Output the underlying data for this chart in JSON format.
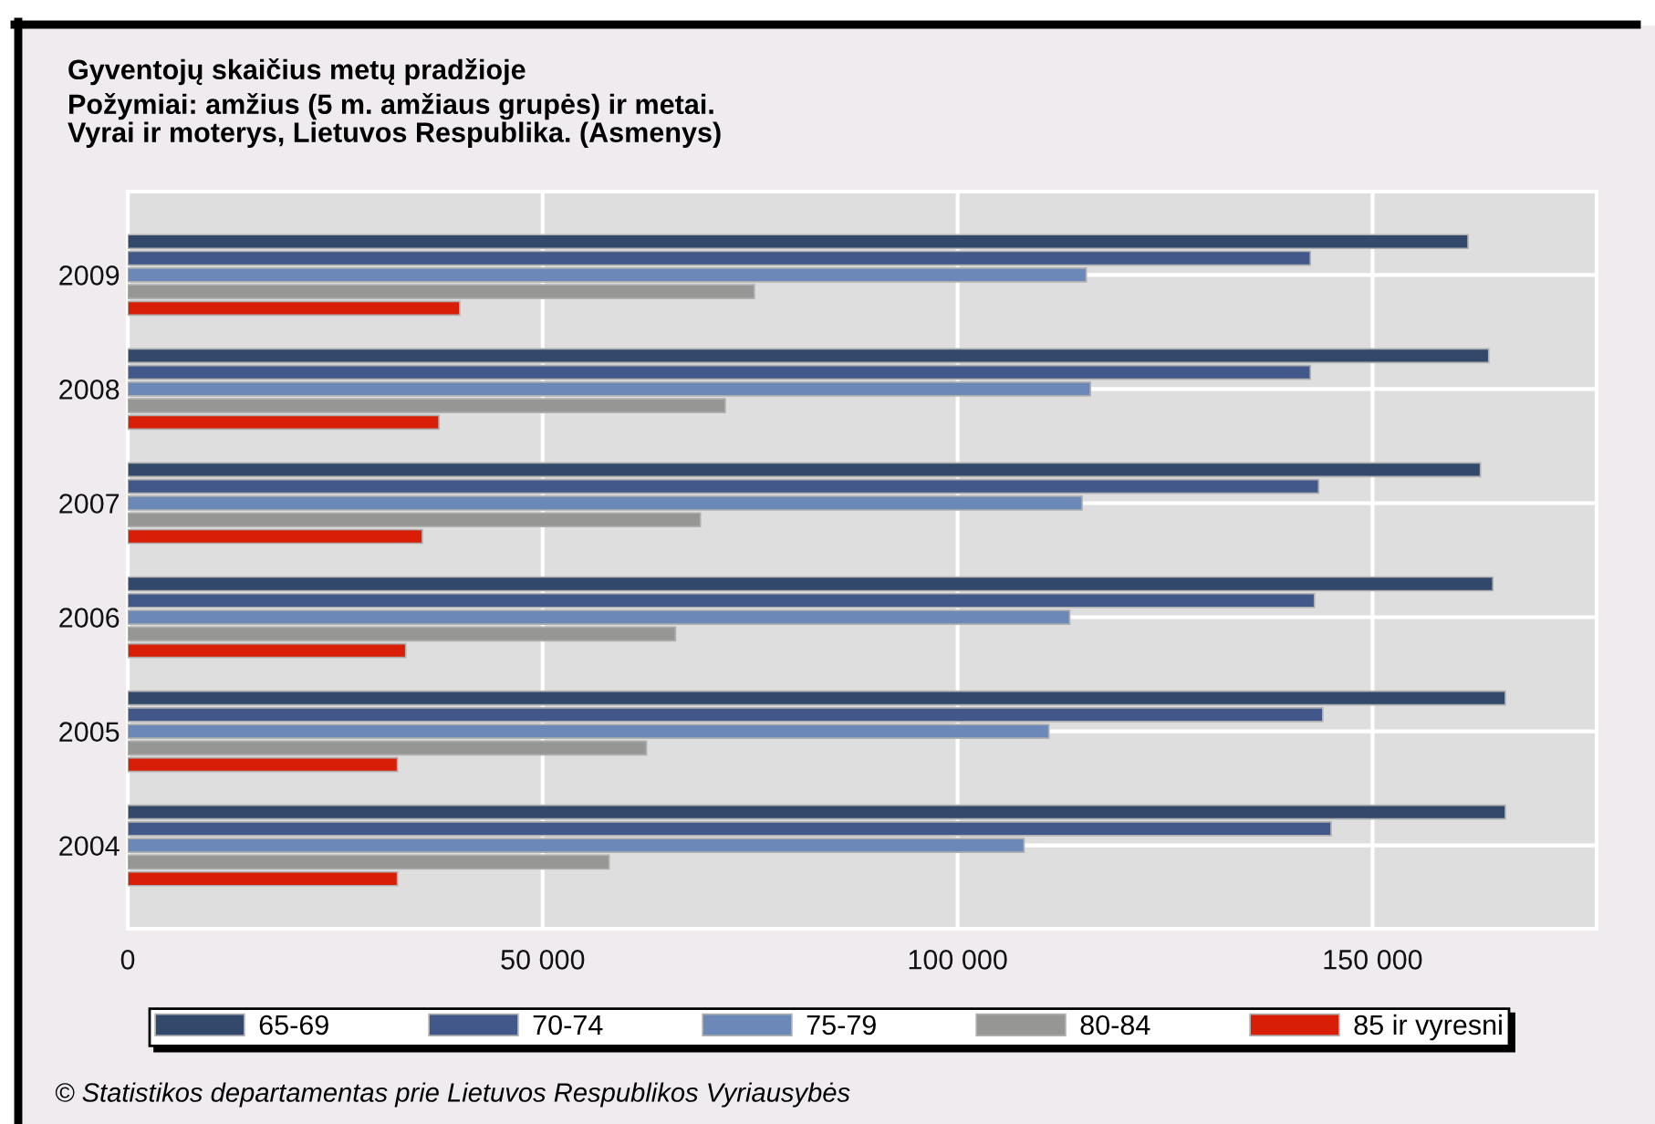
{
  "chart_data": {
    "type": "bar",
    "orientation": "horizontal",
    "title": "Gyventojų skaičius metų pradžioje",
    "subtitle": "Požymiai: amžius (5 m. amžiaus grupės) ir metai.\nVyrai ir moterys, Lietuvos Respublika. (Asmenys)",
    "categories": [
      "2009",
      "2008",
      "2007",
      "2006",
      "2005",
      "2004"
    ],
    "series": [
      {
        "name": "65-69",
        "color": "#33496b",
        "values": [
          161500,
          164000,
          163000,
          164500,
          166000,
          166000
        ]
      },
      {
        "name": "70-74",
        "color": "#42588a",
        "values": [
          142500,
          142500,
          143500,
          143000,
          144000,
          145000
        ]
      },
      {
        "name": "75-79",
        "color": "#6b88b9",
        "values": [
          115500,
          116000,
          115000,
          113500,
          111000,
          108000
        ]
      },
      {
        "name": "80-84",
        "color": "#969694",
        "values": [
          75500,
          72000,
          69000,
          66000,
          62500,
          58000
        ]
      },
      {
        "name": "85 ir vyresni",
        "color": "#d81e06",
        "values": [
          40000,
          37500,
          35500,
          33500,
          32500,
          32500
        ]
      }
    ],
    "xlim": [
      0,
      177000
    ],
    "xticks": [
      0,
      {
        "value": 50000,
        "label": "50 000"
      },
      {
        "value": 100000,
        "label": "100 000"
      },
      {
        "value": 150000,
        "label": "150 000"
      }
    ],
    "grid": true,
    "legend": "bottom",
    "annotations": [
      "© Statistikos departamentas prie Lietuvos Respublikos Vyriausybės"
    ]
  }
}
